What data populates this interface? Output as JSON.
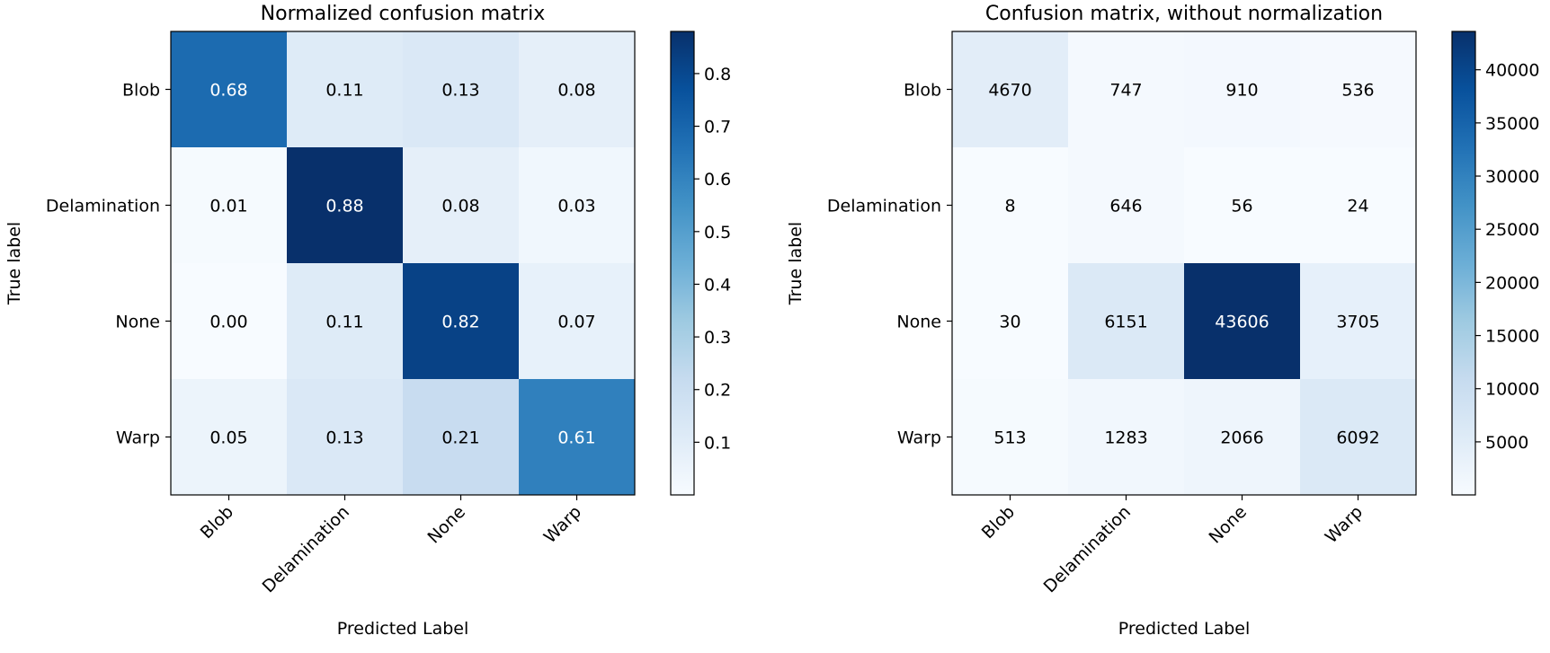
{
  "chart_data": [
    {
      "type": "heatmap",
      "title": "Normalized confusion matrix",
      "xlabel": "Predicted Label",
      "ylabel": "True label",
      "x_categories": [
        "Blob",
        "Delamination",
        "None",
        "Warp"
      ],
      "y_categories": [
        "Blob",
        "Delamination",
        "None",
        "Warp"
      ],
      "values": [
        [
          0.68,
          0.11,
          0.13,
          0.08
        ],
        [
          0.01,
          0.88,
          0.08,
          0.03
        ],
        [
          0.0,
          0.11,
          0.82,
          0.07
        ],
        [
          0.05,
          0.13,
          0.21,
          0.61
        ]
      ],
      "value_format": "fixed2",
      "colormap": "Blues",
      "vmin": 0.0,
      "vmax": 0.88,
      "colorbar_ticks": [
        0.1,
        0.2,
        0.3,
        0.4,
        0.5,
        0.6,
        0.7,
        0.8
      ],
      "colorbar_tick_labels": [
        "0.1",
        "0.2",
        "0.3",
        "0.4",
        "0.5",
        "0.6",
        "0.7",
        "0.8"
      ]
    },
    {
      "type": "heatmap",
      "title": "Confusion matrix, without normalization",
      "xlabel": "Predicted Label",
      "ylabel": "True label",
      "x_categories": [
        "Blob",
        "Delamination",
        "None",
        "Warp"
      ],
      "y_categories": [
        "Blob",
        "Delamination",
        "None",
        "Warp"
      ],
      "values": [
        [
          4670,
          747,
          910,
          536
        ],
        [
          8,
          646,
          56,
          24
        ],
        [
          30,
          6151,
          43606,
          3705
        ],
        [
          513,
          1283,
          2066,
          6092
        ]
      ],
      "value_format": "integer",
      "colormap": "Blues",
      "vmin": 8,
      "vmax": 43606,
      "colorbar_ticks": [
        5000,
        10000,
        15000,
        20000,
        25000,
        30000,
        35000,
        40000
      ],
      "colorbar_tick_labels": [
        "5000",
        "10000",
        "15000",
        "20000",
        "25000",
        "30000",
        "35000",
        "40000"
      ]
    }
  ]
}
